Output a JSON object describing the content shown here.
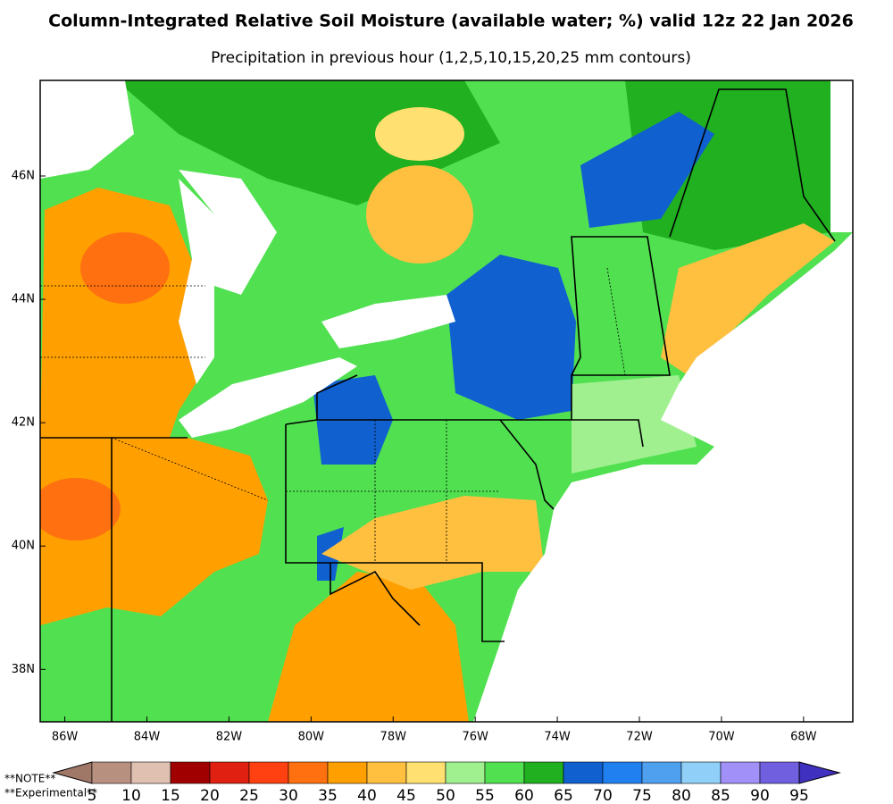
{
  "title": "Column-Integrated Relative Soil Moisture (available water; %) valid 12z 22 Jan 2026",
  "subtitle": "Precipitation in previous hour (1,2,5,10,15,20,25 mm contours)",
  "map": {
    "lon_range": [
      -86.6,
      -66.8
    ],
    "lat_range": [
      37.15,
      47.55
    ],
    "lon_ticks": [
      {
        "value": -86,
        "label": "86W"
      },
      {
        "value": -84,
        "label": "84W"
      },
      {
        "value": -82,
        "label": "82W"
      },
      {
        "value": -80,
        "label": "80W"
      },
      {
        "value": -78,
        "label": "78W"
      },
      {
        "value": -76,
        "label": "76W"
      },
      {
        "value": -74,
        "label": "74W"
      },
      {
        "value": -72,
        "label": "72W"
      },
      {
        "value": -70,
        "label": "70W"
      },
      {
        "value": -68,
        "label": "68W"
      }
    ],
    "lat_ticks": [
      {
        "value": 38,
        "label": "38N"
      },
      {
        "value": 40,
        "label": "40N"
      },
      {
        "value": 42,
        "label": "42N"
      },
      {
        "value": 44,
        "label": "44N"
      },
      {
        "value": 46,
        "label": "46N"
      }
    ]
  },
  "colorbar": {
    "boundaries": [
      5,
      10,
      15,
      20,
      25,
      30,
      35,
      40,
      45,
      50,
      55,
      60,
      65,
      70,
      75,
      80,
      85,
      90,
      95
    ],
    "colors": [
      "#a07868",
      "#b89080",
      "#e0c0b0",
      "#a00000",
      "#e02010",
      "#ff4010",
      "#ff7010",
      "#ffa000",
      "#ffc040",
      "#ffe070",
      "#a0f090",
      "#50e050",
      "#20b020",
      "#1060d0",
      "#2080f0",
      "#50a0f0",
      "#90d0f8",
      "#a090f8",
      "#7060e0",
      "#4030c0"
    ]
  },
  "notes": [
    "**NOTE**",
    "**Experimental**"
  ]
}
